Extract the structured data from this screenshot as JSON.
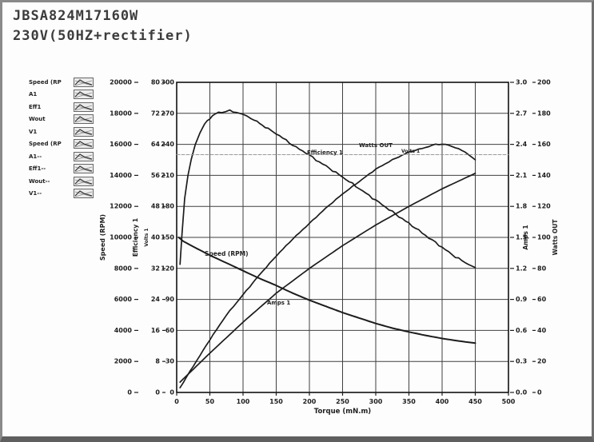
{
  "title": {
    "model": "JBSA824M17160W",
    "condition": "230V(50HZ+rectifier)"
  },
  "colors": {
    "curve": "#1c1c1c",
    "grid": "#404040",
    "frame": "#111111",
    "faint_line": "#9a9a9a",
    "text": "#1e1e1e"
  },
  "legend": {
    "items": [
      {
        "label": "Speed (RP"
      },
      {
        "label": "A1"
      },
      {
        "label": "Eff1"
      },
      {
        "label": "Wout"
      },
      {
        "label": "V1"
      },
      {
        "label": "Speed (RP"
      },
      {
        "label": "A1--"
      },
      {
        "label": "Eff1--"
      },
      {
        "label": "Wout--"
      },
      {
        "label": "V1--"
      }
    ]
  },
  "chart_data": {
    "type": "line",
    "title": "",
    "xlabel": "Torque (mN.m)",
    "x_range": [
      0,
      500
    ],
    "x_tick_labels": [
      "0",
      "50",
      "100",
      "150",
      "200",
      "250",
      "300",
      "350",
      "400",
      "450",
      "500"
    ],
    "grid": "on",
    "axes": [
      {
        "id": "speed",
        "label": "Speed (RPM)",
        "side": "left",
        "range": [
          0,
          20000
        ],
        "tick_labels": [
          "0",
          "2000",
          "4000",
          "6000",
          "8000",
          "10000",
          "12000",
          "14000",
          "16000",
          "18000",
          "20000"
        ]
      },
      {
        "id": "eff",
        "label": "Efficiency 1",
        "side": "left",
        "range": [
          0,
          80
        ],
        "tick_labels": [
          "0",
          "8",
          "16",
          "24",
          "32",
          "40",
          "48",
          "56",
          "64",
          "72",
          "80"
        ]
      },
      {
        "id": "volts",
        "label": "Volts 1",
        "side": "left",
        "range": [
          0,
          300
        ],
        "tick_labels": [
          "0",
          "30",
          "60",
          "90",
          "120",
          "150",
          "180",
          "210",
          "240",
          "270",
          "300"
        ]
      },
      {
        "id": "amps",
        "label": "Amps 1",
        "side": "right",
        "range": [
          0,
          3.0
        ],
        "tick_labels": [
          "0.0",
          "0.3",
          "0.6",
          "0.9",
          "1.2",
          "1.5",
          "1.8",
          "2.1",
          "2.4",
          "2.7",
          "3.0"
        ]
      },
      {
        "id": "watts",
        "label": "Watts OUT",
        "side": "right",
        "range": [
          0,
          200
        ],
        "tick_labels": [
          "0",
          "20",
          "40",
          "60",
          "80",
          "100",
          "120",
          "140",
          "160",
          "180",
          "200"
        ]
      }
    ],
    "series": [
      {
        "name": "Speed (RPM)",
        "axis": "speed",
        "noise": 0,
        "points": [
          [
            3,
            10000
          ],
          [
            10,
            9750
          ],
          [
            25,
            9400
          ],
          [
            50,
            8850
          ],
          [
            75,
            8350
          ],
          [
            100,
            7850
          ],
          [
            125,
            7350
          ],
          [
            150,
            6900
          ],
          [
            175,
            6400
          ],
          [
            200,
            5950
          ],
          [
            225,
            5550
          ],
          [
            250,
            5150
          ],
          [
            275,
            4800
          ],
          [
            300,
            4450
          ],
          [
            325,
            4150
          ],
          [
            350,
            3900
          ],
          [
            375,
            3680
          ],
          [
            400,
            3480
          ],
          [
            425,
            3320
          ],
          [
            450,
            3180
          ]
        ]
      },
      {
        "name": "Efficiency 1",
        "axis": "eff",
        "noise": 1.3,
        "points": [
          [
            5,
            33
          ],
          [
            8,
            41
          ],
          [
            12,
            50
          ],
          [
            17,
            56
          ],
          [
            22,
            60
          ],
          [
            28,
            64
          ],
          [
            35,
            67
          ],
          [
            42,
            69.3
          ],
          [
            50,
            70.8
          ],
          [
            58,
            71.8
          ],
          [
            68,
            72.4
          ],
          [
            80,
            72.6
          ],
          [
            90,
            72.3
          ],
          [
            100,
            71.7
          ],
          [
            112,
            70.7
          ],
          [
            125,
            69.4
          ],
          [
            138,
            68
          ],
          [
            150,
            66.8
          ],
          [
            165,
            65
          ],
          [
            180,
            63.2
          ],
          [
            195,
            61.8
          ],
          [
            210,
            60
          ],
          [
            225,
            58.4
          ],
          [
            240,
            56.7
          ],
          [
            255,
            55
          ],
          [
            270,
            53.2
          ],
          [
            285,
            51.4
          ],
          [
            300,
            49.6
          ],
          [
            315,
            47.8
          ],
          [
            330,
            46
          ],
          [
            345,
            44.2
          ],
          [
            360,
            42.4
          ],
          [
            375,
            40.5
          ],
          [
            390,
            38.7
          ],
          [
            405,
            36.8
          ],
          [
            420,
            35
          ],
          [
            435,
            33.5
          ],
          [
            450,
            32.2
          ]
        ]
      },
      {
        "name": "Watts OUT",
        "axis": "watts",
        "noise": 0.5,
        "points": [
          [
            5,
            3
          ],
          [
            25,
            17
          ],
          [
            50,
            34
          ],
          [
            75,
            50
          ],
          [
            100,
            63
          ],
          [
            125,
            76
          ],
          [
            150,
            88
          ],
          [
            175,
            99
          ],
          [
            200,
            109
          ],
          [
            225,
            119
          ],
          [
            250,
            128
          ],
          [
            275,
            136
          ],
          [
            300,
            144
          ],
          [
            325,
            150
          ],
          [
            350,
            155
          ],
          [
            375,
            158
          ],
          [
            390,
            160
          ],
          [
            405,
            160
          ],
          [
            420,
            158
          ],
          [
            435,
            155
          ],
          [
            450,
            150
          ]
        ]
      },
      {
        "name": "Amps 1",
        "axis": "amps",
        "noise": 0,
        "points": [
          [
            5,
            0.1
          ],
          [
            50,
            0.38
          ],
          [
            100,
            0.68
          ],
          [
            150,
            0.96
          ],
          [
            200,
            1.2
          ],
          [
            250,
            1.42
          ],
          [
            300,
            1.62
          ],
          [
            350,
            1.8
          ],
          [
            400,
            1.97
          ],
          [
            450,
            2.12
          ]
        ]
      },
      {
        "name": "Volts 1",
        "axis": "volts",
        "noise": 0,
        "style": "faint",
        "points": [
          [
            0,
            230
          ],
          [
            500,
            230
          ]
        ]
      }
    ],
    "annotations": [
      {
        "text": "Speed (RPM)",
        "x": 253,
        "y": 317,
        "size": 7.5
      },
      {
        "text": "Efficiency 1",
        "x": 381,
        "y": 190,
        "size": 7
      },
      {
        "text": "Watts OUT",
        "x": 446,
        "y": 181,
        "size": 7
      },
      {
        "text": "Volts 1",
        "x": 499,
        "y": 188,
        "size": 6
      },
      {
        "text": "Amps 1",
        "x": 331,
        "y": 378,
        "size": 7
      }
    ]
  }
}
